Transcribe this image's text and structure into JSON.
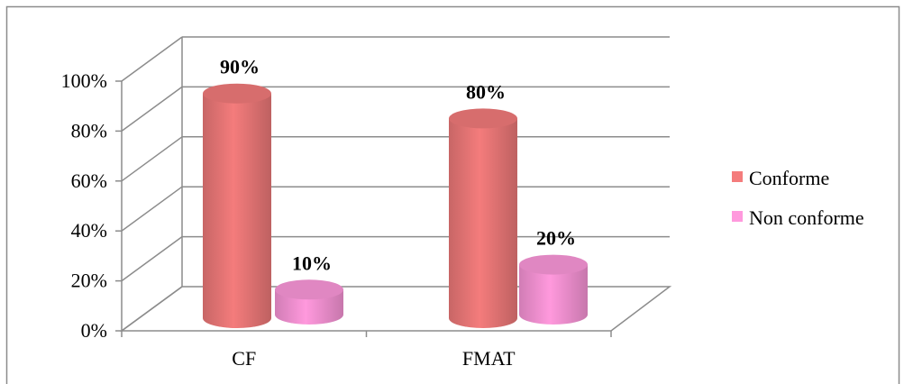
{
  "chart_data": {
    "type": "bar",
    "subtype": "3d-cylinder",
    "categories": [
      "CF",
      "FMAT"
    ],
    "series": [
      {
        "name": "Conforme",
        "values": [
          90,
          80
        ],
        "data_labels": [
          "90%",
          "80%"
        ]
      },
      {
        "name": "Non conforme",
        "values": [
          10,
          20
        ],
        "data_labels": [
          "10%",
          "20%"
        ]
      }
    ],
    "ylim": [
      0,
      100
    ],
    "yticks": [
      0,
      20,
      40,
      60,
      80,
      100
    ],
    "ytick_labels": [
      "0%",
      "20%",
      "40%",
      "60%",
      "80%",
      "100%"
    ],
    "grid": true,
    "legend_position": "right",
    "colors": {
      "Conforme": "#f47c7c",
      "Non conforme": "#ff99dd",
      "grid": "#8c8c8c",
      "border": "#8c8c8c"
    }
  }
}
